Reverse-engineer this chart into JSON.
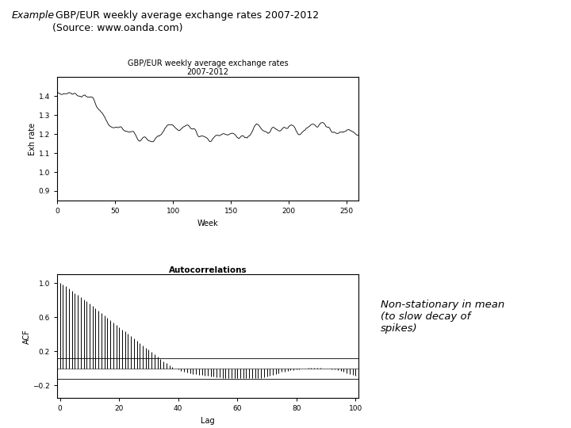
{
  "title_top_italic": "Example",
  "title_top_rest": " GBP/EUR weekly average exchange rates 2007-2012\n(Source: www.oanda.com)",
  "chart1_title_line1": "GBP/EUR weekly average exchange rates",
  "chart1_title_line2": "2007-2012",
  "chart1_xlabel": "Week",
  "chart1_ylabel": "Exh rate",
  "chart1_xlim": [
    0,
    260
  ],
  "chart1_ylim": [
    0.85,
    1.5
  ],
  "chart1_yticks": [
    0.9,
    1.0,
    1.1,
    1.2,
    1.3,
    1.4
  ],
  "chart1_xticks": [
    0,
    50,
    100,
    150,
    200,
    250
  ],
  "chart2_title": "Autocorrelations",
  "chart2_xlabel": "Lag",
  "chart2_ylabel": "ACF",
  "chart2_xlim": [
    -1,
    101
  ],
  "chart2_ylim": [
    -0.35,
    1.1
  ],
  "chart2_yticks": [
    -0.2,
    0.2,
    0.6,
    1.0
  ],
  "chart2_xticks": [
    0,
    20,
    40,
    60,
    80,
    100
  ],
  "annotation_text": "Non-stationary in mean\n(to slow decay of\nspikes)",
  "background_color": "#ffffff",
  "line_color": "#000000",
  "seed": 12345
}
